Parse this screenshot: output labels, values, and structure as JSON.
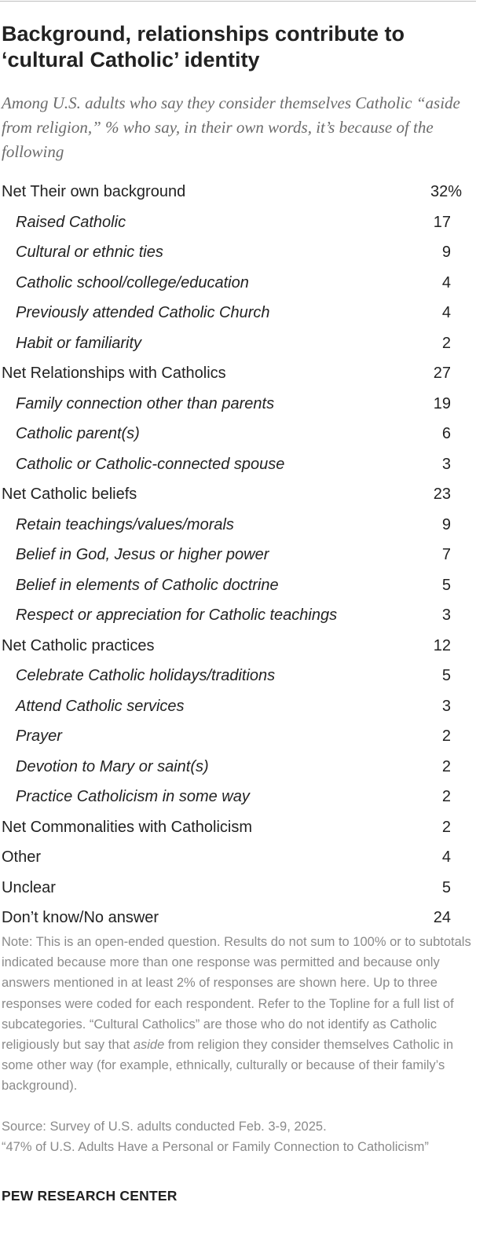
{
  "title": "Background, relationships contribute to ‘cultural Catholic’ identity",
  "subtitle": "Among U.S. adults who say they consider themselves Catholic “aside from religion,” % who say, in their own words, it’s because of the following",
  "chart_data": {
    "type": "table",
    "title": "Background, relationships contribute to ‘cultural Catholic’ identity",
    "columns": [
      "Response",
      "%"
    ],
    "rows": [
      {
        "label": "Net Their own background",
        "value": "32%",
        "level": 0
      },
      {
        "label": "Raised Catholic",
        "value": "17",
        "level": 1
      },
      {
        "label": "Cultural or ethnic ties",
        "value": "9",
        "level": 1
      },
      {
        "label": "Catholic school/college/education",
        "value": "4",
        "level": 1
      },
      {
        "label": "Previously attended Catholic Church",
        "value": "4",
        "level": 1
      },
      {
        "label": "Habit or familiarity",
        "value": "2",
        "level": 1
      },
      {
        "label": "Net Relationships with Catholics",
        "value": "27",
        "level": 0
      },
      {
        "label": "Family connection other than parents",
        "value": "19",
        "level": 1
      },
      {
        "label": "Catholic parent(s)",
        "value": "6",
        "level": 1
      },
      {
        "label": "Catholic or Catholic-connected spouse",
        "value": "3",
        "level": 1
      },
      {
        "label": "Net Catholic beliefs",
        "value": "23",
        "level": 0
      },
      {
        "label": "Retain teachings/values/morals",
        "value": "9",
        "level": 1
      },
      {
        "label": "Belief in God, Jesus or higher power",
        "value": "7",
        "level": 1
      },
      {
        "label": "Belief in elements of Catholic doctrine",
        "value": "5",
        "level": 1
      },
      {
        "label": "Respect or appreciation for Catholic teachings",
        "value": "3",
        "level": 1
      },
      {
        "label": "Net Catholic practices",
        "value": "12",
        "level": 0
      },
      {
        "label": "Celebrate Catholic holidays/traditions",
        "value": "5",
        "level": 1
      },
      {
        "label": "Attend Catholic services",
        "value": "3",
        "level": 1
      },
      {
        "label": "Prayer",
        "value": "2",
        "level": 1
      },
      {
        "label": "Devotion to Mary or saint(s)",
        "value": "2",
        "level": 1
      },
      {
        "label": "Practice Catholicism in some way",
        "value": "2",
        "level": 1
      },
      {
        "label": "Net Commonalities with Catholicism",
        "value": "2",
        "level": 0
      },
      {
        "label": "Other",
        "value": "4",
        "level": 0
      },
      {
        "label": "Unclear",
        "value": "5",
        "level": 0
      },
      {
        "label": "Don’t know/No answer",
        "value": "24",
        "level": 0
      }
    ]
  },
  "note": {
    "part1": "Note: This is an open-ended question. Results do not sum to 100% or to subtotals indicated because more than one response was permitted and because only answers mentioned in at least 2% of responses are shown here. Up to three responses were coded for each respondent. Refer to the Topline for a full list of subcategories. “Cultural Catholics” are those who do not identify as Catholic religiously but say that ",
    "emphasis": "aside",
    "part2": " from religion they consider themselves Catholic in some other way (for example, ethnically, culturally or because of their family’s background)."
  },
  "source": {
    "line1": "Source: Survey of U.S. adults conducted Feb. 3-9, 2025.",
    "line2": "“47% of U.S. Adults Have a Personal or Family Connection to Catholicism”"
  },
  "footer": "PEW RESEARCH CENTER"
}
